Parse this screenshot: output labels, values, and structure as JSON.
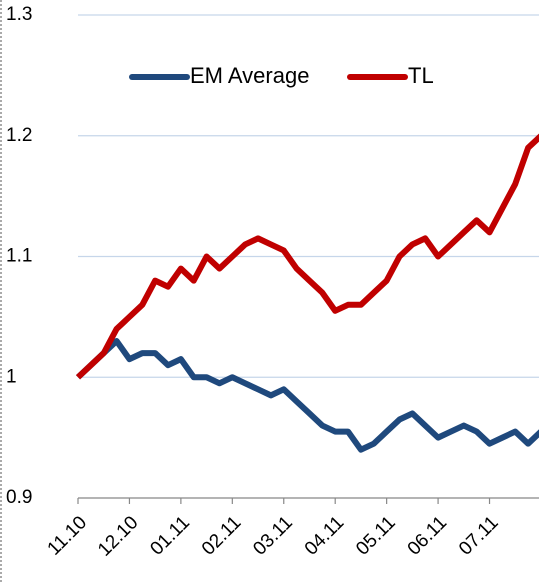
{
  "chart_data": {
    "type": "line",
    "categories": [
      "11.10",
      null,
      null,
      null,
      "12.10",
      null,
      null,
      null,
      "01.11",
      null,
      null,
      null,
      "02.11",
      null,
      null,
      null,
      "03.11",
      null,
      null,
      null,
      "04.11",
      null,
      null,
      null,
      "05.11",
      null,
      null,
      null,
      "06.11",
      null,
      null,
      null,
      "07.11",
      null,
      null,
      null,
      null
    ],
    "series": [
      {
        "name": "EM Average",
        "color": "#1f497d",
        "values": [
          1.0,
          1.01,
          1.02,
          1.03,
          1.015,
          1.02,
          1.02,
          1.01,
          1.015,
          1.0,
          1.0,
          0.995,
          1.0,
          0.995,
          0.99,
          0.985,
          0.99,
          0.98,
          0.97,
          0.96,
          0.955,
          0.955,
          0.94,
          0.945,
          0.955,
          0.965,
          0.97,
          0.96,
          0.95,
          0.955,
          0.96,
          0.955,
          0.945,
          0.95,
          0.955,
          0.945,
          0.955
        ]
      },
      {
        "name": "TL",
        "color": "#c00000",
        "values": [
          1.0,
          1.01,
          1.02,
          1.04,
          1.05,
          1.06,
          1.08,
          1.075,
          1.09,
          1.08,
          1.1,
          1.09,
          1.1,
          1.11,
          1.115,
          1.11,
          1.105,
          1.09,
          1.08,
          1.07,
          1.055,
          1.06,
          1.06,
          1.07,
          1.08,
          1.1,
          1.11,
          1.115,
          1.1,
          1.11,
          1.12,
          1.13,
          1.12,
          1.14,
          1.16,
          1.19,
          1.2
        ]
      }
    ],
    "ylim": [
      0.9,
      1.3
    ],
    "yticks": [
      0.9,
      1,
      1.1,
      1.2,
      1.3
    ],
    "grid": true,
    "legend": "top"
  }
}
